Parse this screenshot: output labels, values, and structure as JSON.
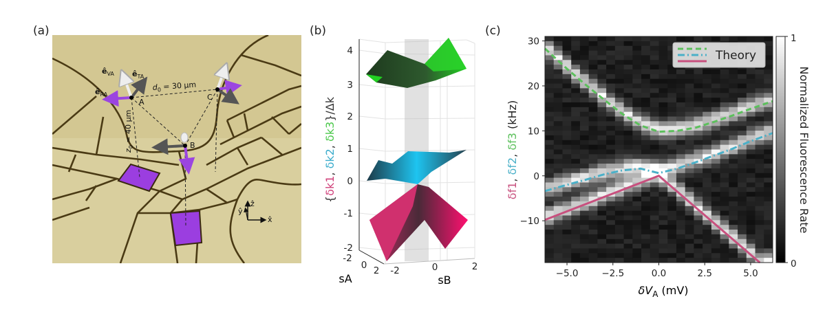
{
  "panels": {
    "a": {
      "label": "(a)",
      "point_labels": [
        "A",
        "B",
        "C"
      ],
      "distance_label": "d0 = 30 μm",
      "distance_parts": {
        "sym": "d",
        "sub": "0",
        "rest": " = 30 μm"
      },
      "height_parts": {
        "sym": "z",
        "sub": "0",
        "rest": " = 40 μm"
      },
      "vector_labels": [
        {
          "base": "ê",
          "sub": "VA"
        },
        {
          "base": "ê",
          "sub": "TA"
        },
        {
          "base": "ê",
          "sub": "RA"
        }
      ],
      "axes_labels": {
        "x": "x̂",
        "y": "ŷ",
        "z": "ẑ"
      },
      "colors": {
        "background": "#d9cf9e",
        "electrode_line": "#4a3a14",
        "pad": "#9b3ee0",
        "arrow_radial": "#9b45e0",
        "arrow_tangential": "#555555",
        "arrow_vertical": "#f0f0f0"
      }
    },
    "b": {
      "label": "(b)",
      "ylabel_parts": [
        {
          "text": "{",
          "color": "#333333"
        },
        {
          "text": "δk1",
          "color": "#d0407a"
        },
        {
          "text": ", ",
          "color": "#333333"
        },
        {
          "text": "δk2",
          "color": "#3aaccc"
        },
        {
          "text": ", ",
          "color": "#333333"
        },
        {
          "text": "δk3",
          "color": "#4cc84c"
        },
        {
          "text": "}/Δk",
          "color": "#333333"
        }
      ],
      "z_ticks": [
        "4",
        "3",
        "2",
        "1",
        "0",
        "-1",
        "-2"
      ],
      "sA_label": "sA",
      "sA_ticks": [
        "-2",
        "0",
        "2"
      ],
      "sB_label": "sB",
      "sB_ticks": [
        "-2",
        "0",
        "2"
      ],
      "surface_colors": {
        "k1": "#e8186a",
        "k2": "#1ec4f0",
        "k3": "#22d022"
      }
    },
    "c": {
      "label": "(c)"
    }
  },
  "chart_data": {
    "type": "heatmap",
    "xlabel": "δVA (mV)",
    "xlabel_parts": {
      "main": "δV",
      "sub": "A",
      "unit": " (mV)"
    },
    "ylabel_parts": [
      {
        "text": "δf1",
        "color": "#c8507e"
      },
      {
        "text": ", ",
        "color": "#333333"
      },
      {
        "text": "δf2",
        "color": "#4ab0c8"
      },
      {
        "text": ", ",
        "color": "#333333"
      },
      {
        "text": "δf3",
        "color": "#5cc05c"
      },
      {
        "text": " (kHz)",
        "color": "#222222"
      }
    ],
    "xlim": [
      -6.2,
      6.2
    ],
    "ylim": [
      -19.3,
      31
    ],
    "x_ticks": [
      "−5.0",
      "−2.5",
      "0.0",
      "2.5",
      "5.0"
    ],
    "x_tick_values": [
      -5,
      -2.5,
      0,
      2.5,
      5
    ],
    "y_ticks": [
      "30",
      "20",
      "10",
      "0",
      "−10"
    ],
    "y_tick_values": [
      30,
      20,
      10,
      0,
      -10
    ],
    "colormap": "gray",
    "colorbar": {
      "label": "Normalized Fluorescence Rate",
      "range": [
        0,
        1
      ],
      "ticks": [
        "1",
        "0"
      ]
    },
    "legend": {
      "label": "Theory",
      "placement": "top-right"
    },
    "theory": [
      {
        "id": "f3",
        "color": "#5cc05c",
        "style": "dashed",
        "x": [
          -6.2,
          -5,
          -4,
          -3,
          -2,
          -1,
          0,
          1,
          2,
          3,
          4,
          5,
          6.2
        ],
        "y": [
          28.3,
          23.8,
          20.3,
          17,
          13.8,
          11.2,
          9.8,
          10,
          10.7,
          12,
          13.4,
          14.9,
          16.6
        ]
      },
      {
        "id": "f2",
        "color": "#4ab0c8",
        "style": "dashdot",
        "x": [
          -6.2,
          -5,
          -4,
          -3,
          -2,
          -1,
          0,
          1,
          2,
          3,
          4,
          5,
          6.2
        ],
        "y": [
          -3.4,
          -2,
          -0.9,
          0.3,
          1.2,
          1.6,
          0.6,
          1.6,
          3,
          4.5,
          6,
          7.7,
          9.5
        ]
      },
      {
        "id": "f1",
        "color": "#c8507e",
        "style": "solid",
        "x": [
          -6.2,
          0,
          5.5
        ],
        "y": [
          -9.8,
          0,
          -19.3
        ]
      }
    ]
  }
}
